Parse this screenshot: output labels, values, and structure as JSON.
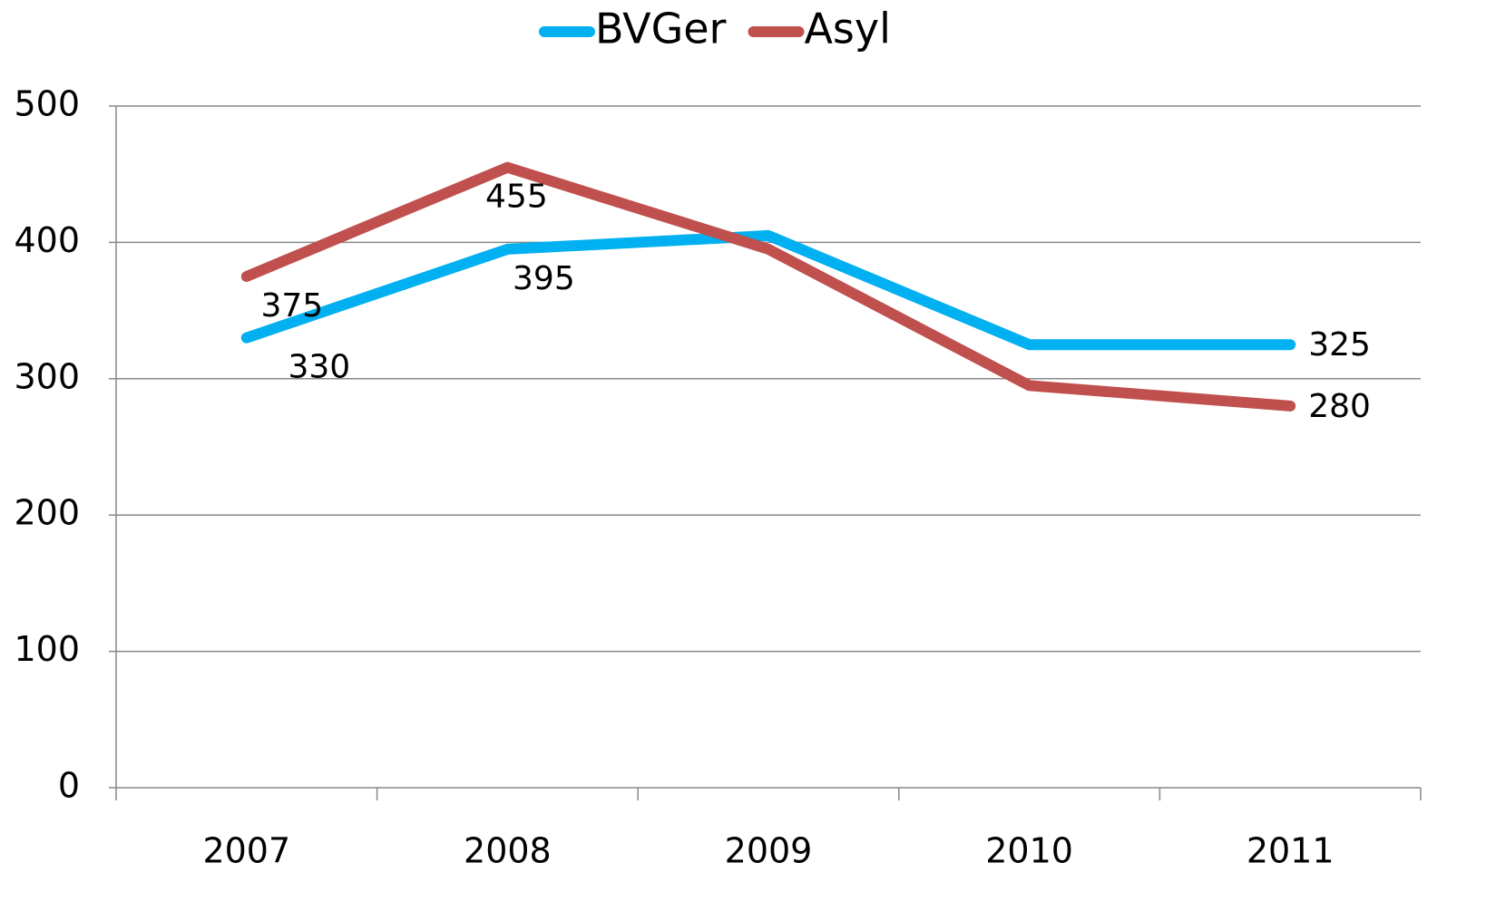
{
  "chart_data": {
    "type": "line",
    "categories": [
      "2007",
      "2008",
      "2009",
      "2010",
      "2011"
    ],
    "series": [
      {
        "name": "BVGer",
        "color": "#00b0f0",
        "values": [
          330,
          395,
          405,
          325,
          325
        ],
        "value_labels": [
          330,
          395,
          null,
          null,
          325
        ]
      },
      {
        "name": "Asyl",
        "color": "#c0504d",
        "values": [
          375,
          455,
          395,
          295,
          280
        ],
        "value_labels": [
          375,
          455,
          null,
          null,
          280
        ]
      }
    ],
    "ylim": [
      0,
      500
    ],
    "yticks": [
      0,
      100,
      200,
      300,
      400,
      500
    ],
    "grid": true,
    "legend": "top"
  }
}
